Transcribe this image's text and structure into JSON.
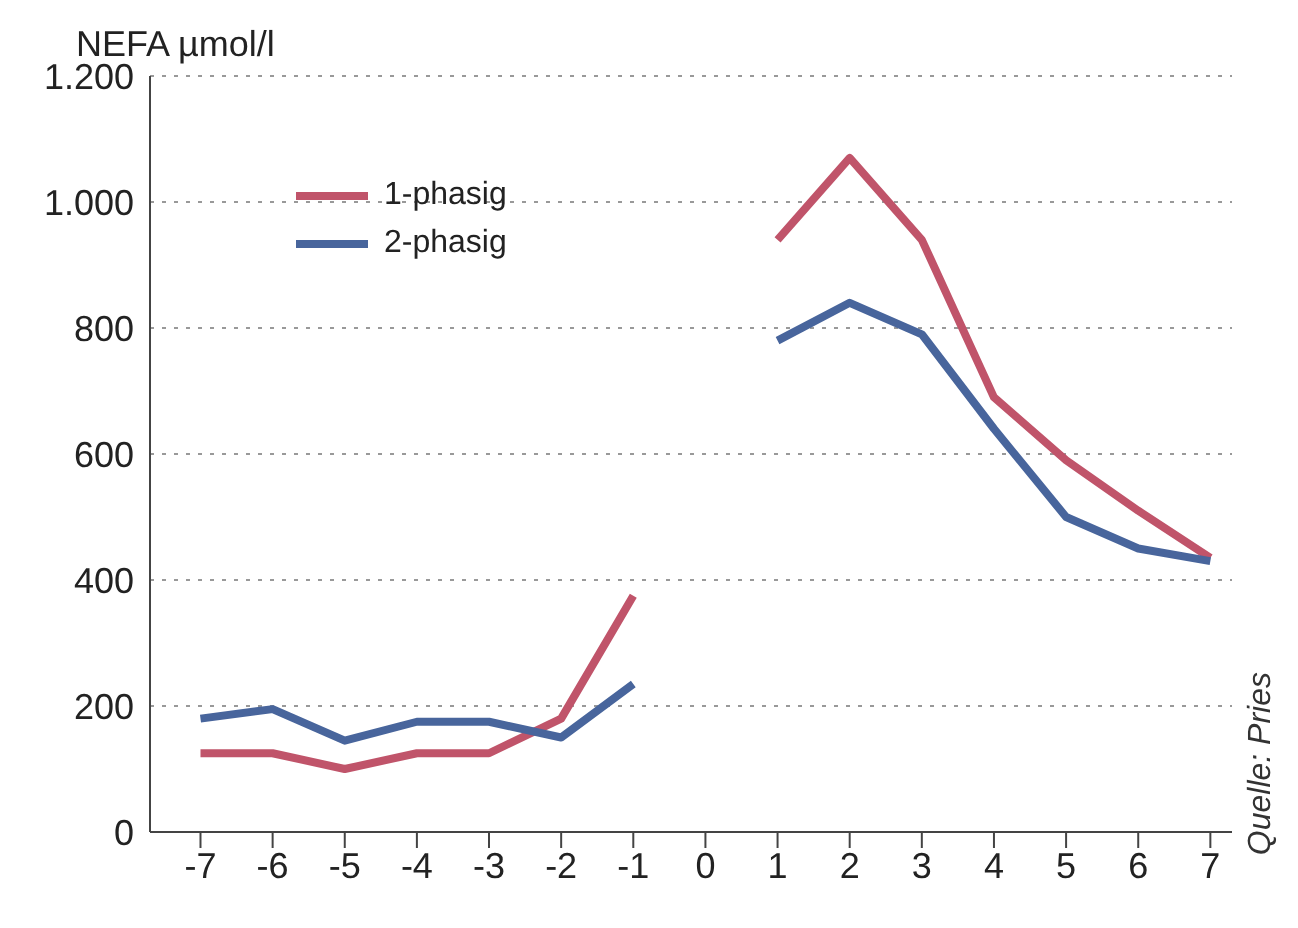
{
  "chart_data": {
    "type": "line",
    "ylabel": "NEFA µmol/l",
    "x": [
      -7,
      -6,
      -5,
      -4,
      -3,
      -2,
      -1,
      0,
      1,
      2,
      3,
      4,
      5,
      6,
      7
    ],
    "series": [
      {
        "name": "1-phasig",
        "color": "#c0546a",
        "values": [
          125,
          125,
          100,
          125,
          125,
          180,
          375,
          null,
          940,
          1070,
          940,
          690,
          590,
          510,
          435
        ]
      },
      {
        "name": "2-phasig",
        "color": "#48659c",
        "values": [
          180,
          195,
          145,
          175,
          175,
          150,
          235,
          null,
          780,
          840,
          790,
          640,
          500,
          450,
          430
        ]
      }
    ],
    "xlim": [
      -7.7,
      7.3
    ],
    "xticks": [
      -7,
      -6,
      -5,
      -4,
      -3,
      -2,
      -1,
      0,
      1,
      2,
      3,
      4,
      5,
      6,
      7
    ],
    "ylim": [
      0,
      1200
    ],
    "yticks": [
      0,
      200,
      400,
      600,
      800,
      {
        "value": 1000,
        "label": "1.000"
      },
      {
        "value": 1200,
        "label": "1.200"
      }
    ],
    "grid": "y",
    "legend": "top left",
    "marker": "none",
    "line_style": "solid",
    "annotations": [
      "Quelle: Pries"
    ]
  }
}
